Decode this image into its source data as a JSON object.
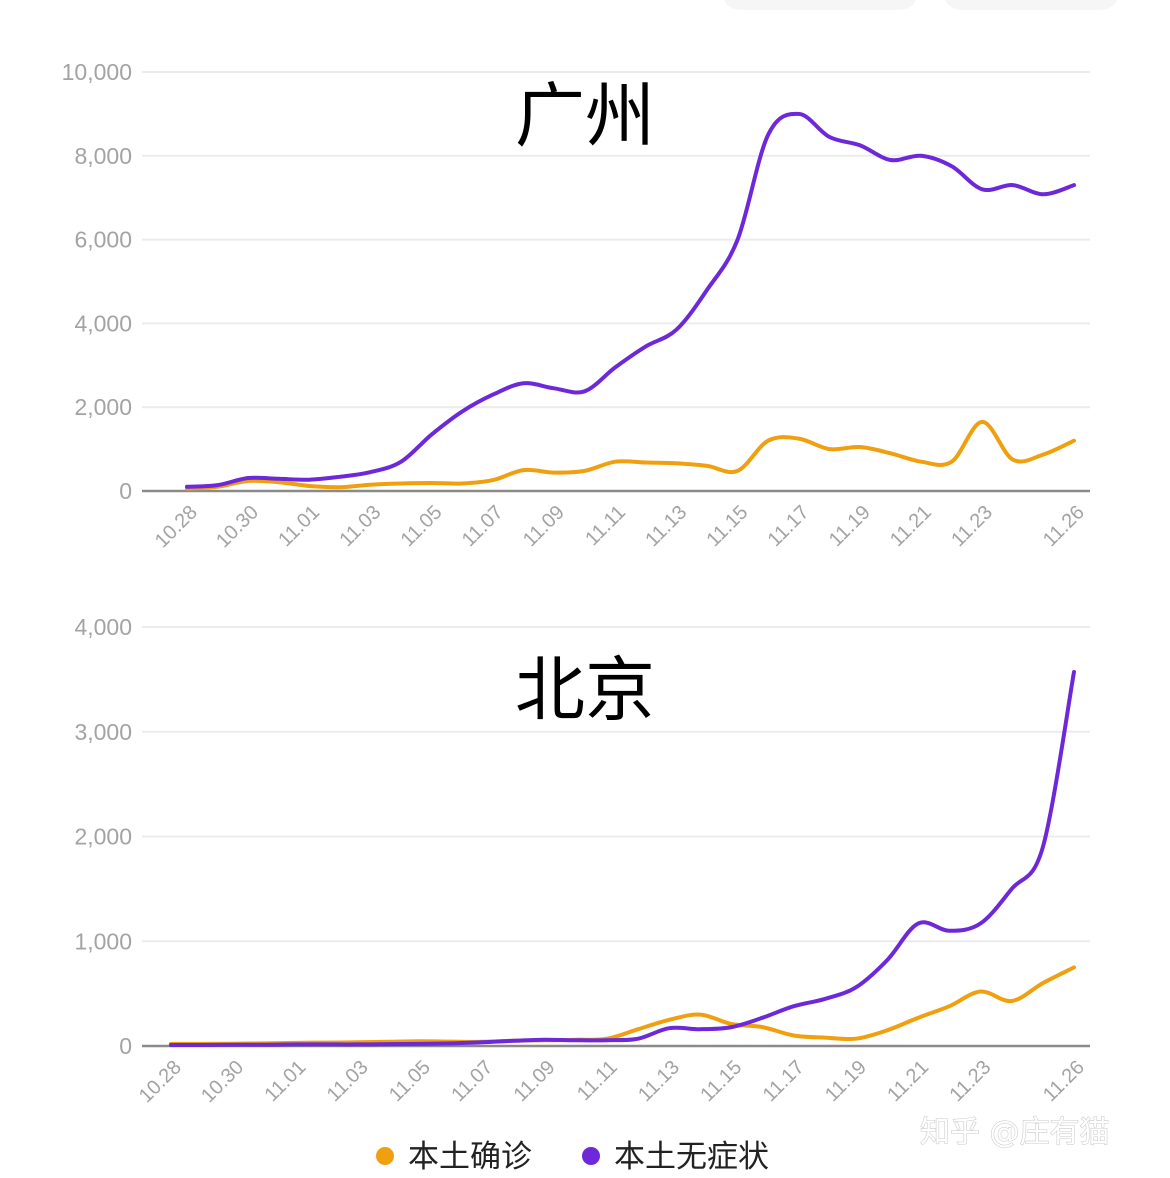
{
  "chart_data": [
    {
      "type": "line",
      "title": "广州",
      "ylim": [
        0,
        10000
      ],
      "y_ticks": [
        "0",
        "2,000",
        "4,000",
        "6,000",
        "8,000",
        "10,000"
      ],
      "x_tick_labels": [
        "10.28",
        "10.30",
        "11.01",
        "11.03",
        "11.05",
        "11.07",
        "11.09",
        "11.11",
        "11.13",
        "11.15",
        "11.17",
        "11.19",
        "11.21",
        "11.23",
        "11.26"
      ],
      "categories": [
        "10.28",
        "10.29",
        "10.30",
        "10.31",
        "11.01",
        "11.02",
        "11.03",
        "11.04",
        "11.05",
        "11.06",
        "11.07",
        "11.08",
        "11.09",
        "11.10",
        "11.11",
        "11.12",
        "11.13",
        "11.14",
        "11.15",
        "11.16",
        "11.17",
        "11.18",
        "11.19",
        "11.20",
        "11.21",
        "11.22",
        "11.23",
        "11.24",
        "11.25",
        "11.26"
      ],
      "grid": true,
      "series": [
        {
          "name": "本土确诊",
          "color": "#f0a00f",
          "values": [
            60,
            100,
            240,
            210,
            120,
            90,
            150,
            180,
            190,
            180,
            260,
            500,
            440,
            480,
            700,
            680,
            660,
            600,
            480,
            1200,
            1250,
            1000,
            1050,
            900,
            700,
            700,
            1650,
            750,
            870,
            1200
          ]
        },
        {
          "name": "本土无症状",
          "color": "#6d28d9",
          "values": [
            100,
            140,
            310,
            290,
            270,
            340,
            450,
            700,
            1350,
            1900,
            2300,
            2570,
            2450,
            2380,
            2950,
            3450,
            3850,
            4800,
            6000,
            8500,
            9000,
            8450,
            8250,
            7900,
            8000,
            7750,
            7200,
            7300,
            7080,
            7300
          ]
        }
      ]
    },
    {
      "type": "line",
      "title": "北京",
      "ylim": [
        0,
        4000
      ],
      "y_ticks": [
        "0",
        "1,000",
        "2,000",
        "3,000",
        "4,000"
      ],
      "x_tick_labels": [
        "10.28",
        "10.30",
        "11.01",
        "11.03",
        "11.05",
        "11.07",
        "11.09",
        "11.11",
        "11.13",
        "11.15",
        "11.17",
        "11.19",
        "11.21",
        "11.23",
        "11.26"
      ],
      "categories": [
        "10.28",
        "10.29",
        "10.30",
        "10.31",
        "11.01",
        "11.02",
        "11.03",
        "11.04",
        "11.05",
        "11.06",
        "11.07",
        "11.08",
        "11.09",
        "11.10",
        "11.11",
        "11.12",
        "11.13",
        "11.14",
        "11.15",
        "11.16",
        "11.17",
        "11.18",
        "11.19",
        "11.20",
        "11.21",
        "11.22",
        "11.23",
        "11.24",
        "11.25",
        "11.26"
      ],
      "grid": true,
      "series": [
        {
          "name": "本土确诊",
          "color": "#f0a00f",
          "values": [
            20,
            20,
            22,
            25,
            30,
            32,
            35,
            40,
            45,
            42,
            40,
            50,
            55,
            60,
            70,
            160,
            250,
            300,
            210,
            180,
            100,
            80,
            70,
            150,
            270,
            380,
            520,
            430,
            600,
            750
          ]
        },
        {
          "name": "本土无症状",
          "color": "#6d28d9",
          "values": [
            10,
            10,
            12,
            12,
            15,
            15,
            15,
            18,
            20,
            25,
            35,
            50,
            60,
            55,
            55,
            70,
            170,
            160,
            180,
            270,
            380,
            450,
            560,
            820,
            1170,
            1100,
            1170,
            1500,
            1900,
            3570
          ]
        }
      ]
    }
  ],
  "legend": [
    {
      "label": "本土确诊",
      "color": "#f0a00f"
    },
    {
      "label": "本土无症状",
      "color": "#6d28d9"
    }
  ],
  "watermark": "知乎 @庄有猫"
}
